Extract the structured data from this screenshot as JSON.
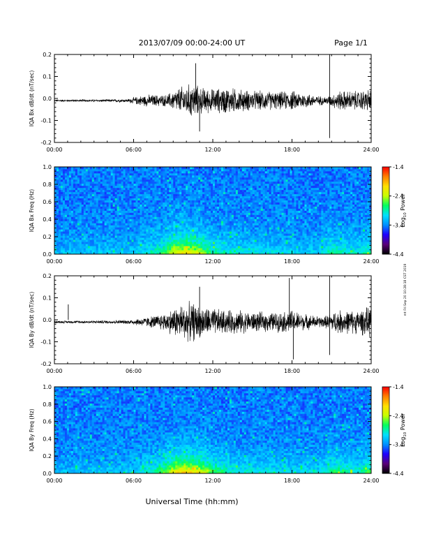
{
  "header": {
    "date_range": "2013/07/09  00:00-24:00 UT",
    "page": "Page 1/1"
  },
  "footer": {
    "xlabel": "Universal Time (hh:mm)",
    "stamp": "mt Fri Sep 20 10:28:18 CST 2019"
  },
  "colorbar": {
    "label_main": "Log",
    "label_sub": "10",
    "label_tail": " Power",
    "ticks": [
      "-1.4",
      "-2.4",
      "-3.4",
      "-4.4"
    ],
    "range": [
      -4.4,
      -1.4
    ],
    "colors": [
      "#000000",
      "#5a0078",
      "#2000ff",
      "#0090ff",
      "#00e0ff",
      "#00ff60",
      "#c8ff00",
      "#ffe000",
      "#ff8000",
      "#ff0000"
    ]
  },
  "chart_data": [
    {
      "type": "line",
      "ylabel": "IQA Bx dB/dt (nT/sec)",
      "ylim": [
        -0.2,
        0.2
      ],
      "yticks": [
        "0.2",
        "0.1",
        "0.0",
        "-0.1",
        "-0.2"
      ],
      "xticks": [
        "00:00",
        "06:00",
        "12:00",
        "18:00",
        "24:00"
      ],
      "xlim_hours": [
        0,
        24
      ],
      "envelope": {
        "hours": [
          0,
          3,
          5.5,
          6.5,
          7,
          8.5,
          9.5,
          10.5,
          11,
          12,
          13,
          14,
          15,
          16,
          17,
          18,
          19,
          20,
          20.5,
          21,
          21.5,
          22,
          23,
          24
        ],
        "amplitude": [
          0.005,
          0.006,
          0.008,
          0.025,
          0.03,
          0.03,
          0.07,
          0.09,
          0.07,
          0.06,
          0.07,
          0.06,
          0.05,
          0.05,
          0.045,
          0.05,
          0.04,
          0.025,
          0.02,
          0.03,
          0.05,
          0.05,
          0.05,
          0.06
        ]
      },
      "spikes": [
        {
          "hour": 10.7,
          "value": 0.16
        },
        {
          "hour": 11.0,
          "value": -0.15
        },
        {
          "hour": 20.85,
          "value": 0.21
        },
        {
          "hour": 20.85,
          "value": -0.18
        }
      ]
    },
    {
      "type": "heatmap",
      "ylabel": "IQA Bx Freq (Hz)",
      "ylim": [
        0.0,
        1.0
      ],
      "yticks": [
        "1.0",
        "0.8",
        "0.6",
        "0.4",
        "0.2",
        "0.0"
      ],
      "xticks": [
        "00:00",
        "06:00",
        "12:00",
        "18:00",
        "24:00"
      ],
      "xlim_hours": [
        0,
        24
      ],
      "zlim": [
        -4.4,
        -1.4
      ],
      "activity": {
        "hours": [
          0,
          6,
          8,
          9,
          10,
          11,
          12,
          13,
          14,
          16,
          18,
          20,
          21,
          23,
          24
        ],
        "strength": [
          0.15,
          0.2,
          0.4,
          0.75,
          0.85,
          0.7,
          0.4,
          0.35,
          0.3,
          0.25,
          0.2,
          0.2,
          0.4,
          0.3,
          0.45
        ]
      }
    },
    {
      "type": "line",
      "ylabel": "IQA By dB/dt (nT/sec)",
      "ylim": [
        -0.2,
        0.2
      ],
      "yticks": [
        "0.2",
        "0.1",
        "0.0",
        "-0.1",
        "-0.2"
      ],
      "xticks": [
        "00:00",
        "06:00",
        "12:00",
        "18:00",
        "24:00"
      ],
      "xlim_hours": [
        0,
        24
      ],
      "envelope": {
        "hours": [
          0,
          3,
          5.5,
          6.5,
          7,
          8,
          8.5,
          9.5,
          10.5,
          11,
          12,
          13,
          14,
          15,
          16,
          17,
          18,
          19,
          20,
          20.5,
          21,
          21.5,
          22,
          23,
          24
        ],
        "amplitude": [
          0.006,
          0.007,
          0.01,
          0.02,
          0.025,
          0.04,
          0.05,
          0.09,
          0.1,
          0.08,
          0.07,
          0.06,
          0.06,
          0.05,
          0.05,
          0.05,
          0.06,
          0.04,
          0.03,
          0.03,
          0.05,
          0.06,
          0.06,
          0.06,
          0.08
        ]
      },
      "spikes": [
        {
          "hour": 1.05,
          "value": 0.07
        },
        {
          "hour": 11.0,
          "value": 0.15
        },
        {
          "hour": 17.8,
          "value": 0.19
        },
        {
          "hour": 18.1,
          "value": -0.18
        },
        {
          "hour": 20.85,
          "value": 0.21
        },
        {
          "hour": 20.85,
          "value": -0.16
        }
      ]
    },
    {
      "type": "heatmap",
      "ylabel": "IQA By Freq (Hz)",
      "ylim": [
        0.0,
        1.0
      ],
      "yticks": [
        "1.0",
        "0.8",
        "0.6",
        "0.4",
        "0.2",
        "0.0"
      ],
      "xticks": [
        "00:00",
        "06:00",
        "12:00",
        "18:00",
        "24:00"
      ],
      "xlim_hours": [
        0,
        24
      ],
      "zlim": [
        -4.4,
        -1.4
      ],
      "activity": {
        "hours": [
          0,
          6,
          8,
          9,
          10,
          11,
          12,
          13,
          14,
          16,
          18,
          20,
          21,
          23,
          24
        ],
        "strength": [
          0.15,
          0.2,
          0.45,
          0.8,
          0.9,
          0.8,
          0.5,
          0.4,
          0.3,
          0.3,
          0.25,
          0.25,
          0.45,
          0.35,
          0.5
        ]
      }
    }
  ]
}
